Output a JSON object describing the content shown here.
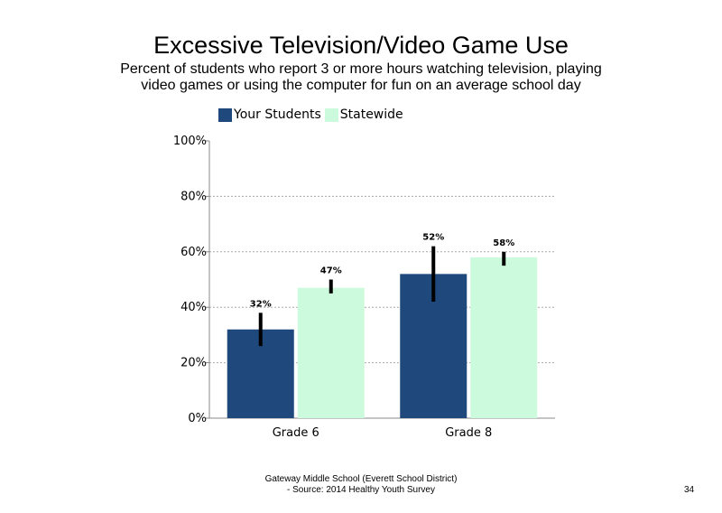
{
  "slide": {
    "title": "Excessive Television/Video Game Use",
    "subtitle": "Percent of students who report 3 or more hours watching television, playing video games or using the computer for fun on an average school day",
    "footer_line1": "Gateway Middle School (Everett School District)",
    "footer_line2": "- Source: 2014 Healthy  Youth Survey",
    "page_number": "34"
  },
  "chart_data": {
    "type": "bar",
    "title": "Excessive Television/Video Game Use",
    "categories": [
      "Grade 6",
      "Grade 8"
    ],
    "series": [
      {
        "name": "Your Students",
        "color": "#1f497d",
        "values": [
          32,
          52
        ],
        "labels": [
          "32%",
          "52%"
        ],
        "error_low": [
          26,
          42
        ],
        "error_high": [
          38,
          62
        ]
      },
      {
        "name": "Statewide",
        "color": "#ccfadc",
        "values": [
          47,
          58
        ],
        "labels": [
          "47%",
          "58%"
        ],
        "error_low": [
          45,
          55
        ],
        "error_high": [
          50,
          60
        ]
      }
    ],
    "ylim": [
      0,
      100
    ],
    "yticks": [
      "0%",
      "20%",
      "40%",
      "60%",
      "80%",
      "100%"
    ],
    "ytick_values": [
      0,
      20,
      40,
      60,
      80,
      100
    ],
    "grid": true,
    "legend_position": "top-left"
  }
}
